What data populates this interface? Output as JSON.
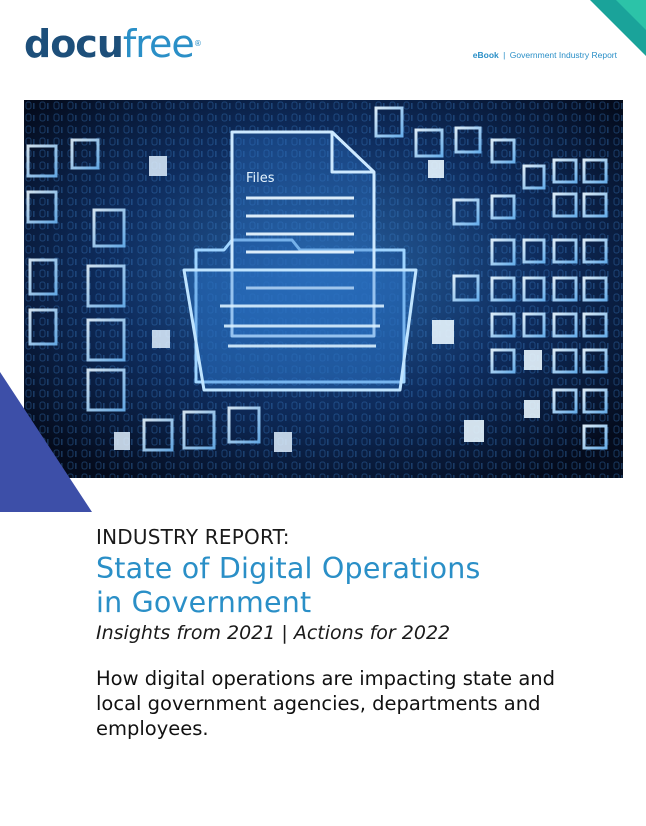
{
  "header": {
    "logo_part1": "docu",
    "logo_part2": "free",
    "logo_mark": "®",
    "doc_type": "eBook",
    "separator": "|",
    "doc_category": "Government Industry Report"
  },
  "hero": {
    "folder_label": "Files",
    "image_description_icon": "digital-files-folder-icon"
  },
  "report": {
    "kicker": "INDUSTRY REPORT:",
    "title_line1": "State of Digital Operations",
    "title_line2": "in Government",
    "subtitle": "Insights from 2021 | Actions for 2022",
    "description": "How digital operations are impacting state and local government agencies, departments and employees."
  },
  "colors": {
    "brand_dark": "#1d4f7a",
    "brand_blue": "#2a8fc7",
    "accent_teal": "#1aa39a",
    "accent_purple": "#3d4fa8"
  }
}
